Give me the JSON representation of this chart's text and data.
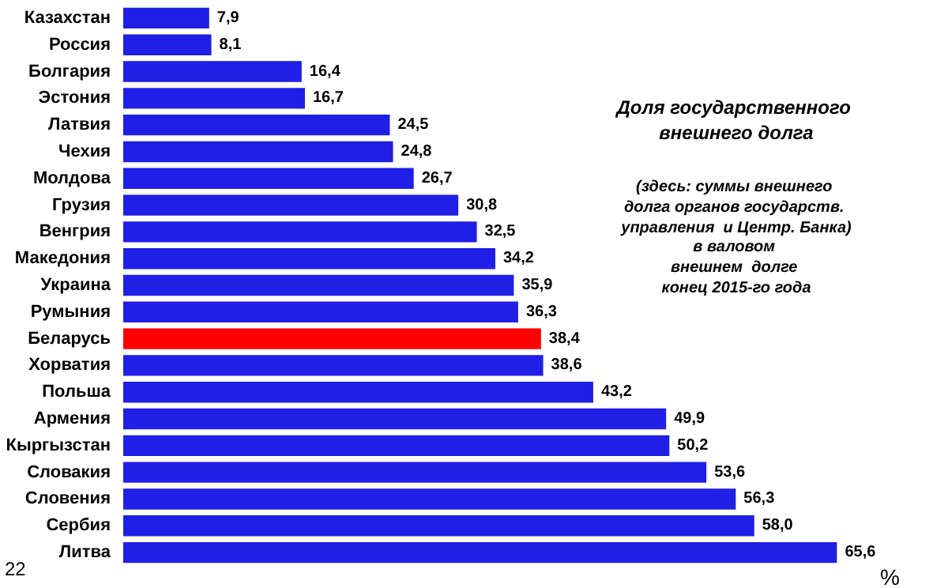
{
  "chart_data": {
    "type": "bar",
    "orientation": "horizontal",
    "title": "Доля государственного внешнего долга",
    "subtitle": "(здесь: суммы внешнего долга органов государств. управления  и Центр. Банка)",
    "xlabel": "%",
    "annotations": [
      "в валовом внешнем  долге конец 2015-го года",
      "22"
    ],
    "categories": [
      "Казахстан",
      "Россия",
      "Болгария",
      "Эстония",
      "Латвия",
      "Чехия",
      "Молдова",
      "Грузия",
      "Венгрия",
      "Македония",
      "Украина",
      "Румыния",
      "Беларусь",
      "Хорватия",
      "Польша",
      "Армения",
      "Кыргызстан",
      "Словакия",
      "Словения",
      "Сербия",
      "Литва"
    ],
    "values": [
      7.9,
      8.1,
      16.4,
      16.7,
      24.5,
      24.8,
      26.7,
      30.8,
      32.5,
      34.2,
      35.9,
      36.3,
      38.4,
      38.6,
      43.2,
      49.9,
      50.2,
      53.6,
      56.3,
      58.0,
      65.6
    ],
    "value_labels": [
      "7,9",
      "8,1",
      "16,4",
      "16,7",
      "24,5",
      "24,8",
      "26,7",
      "30,8",
      "32,5",
      "34,2",
      "35,9",
      "36,3",
      "38,4",
      "38,6",
      "43,2",
      "49,9",
      "50,2",
      "53,6",
      "56,3",
      "58,0",
      "65,6"
    ],
    "colors": [
      "#1f1fe6",
      "#1f1fe6",
      "#1f1fe6",
      "#1f1fe6",
      "#1f1fe6",
      "#1f1fe6",
      "#1f1fe6",
      "#1f1fe6",
      "#1f1fe6",
      "#1f1fe6",
      "#1f1fe6",
      "#1f1fe6",
      "#ff0000",
      "#1f1fe6",
      "#1f1fe6",
      "#1f1fe6",
      "#1f1fe6",
      "#1f1fe6",
      "#1f1fe6",
      "#1f1fe6",
      "#1f1fe6"
    ],
    "tick_labels": "y"
  }
}
